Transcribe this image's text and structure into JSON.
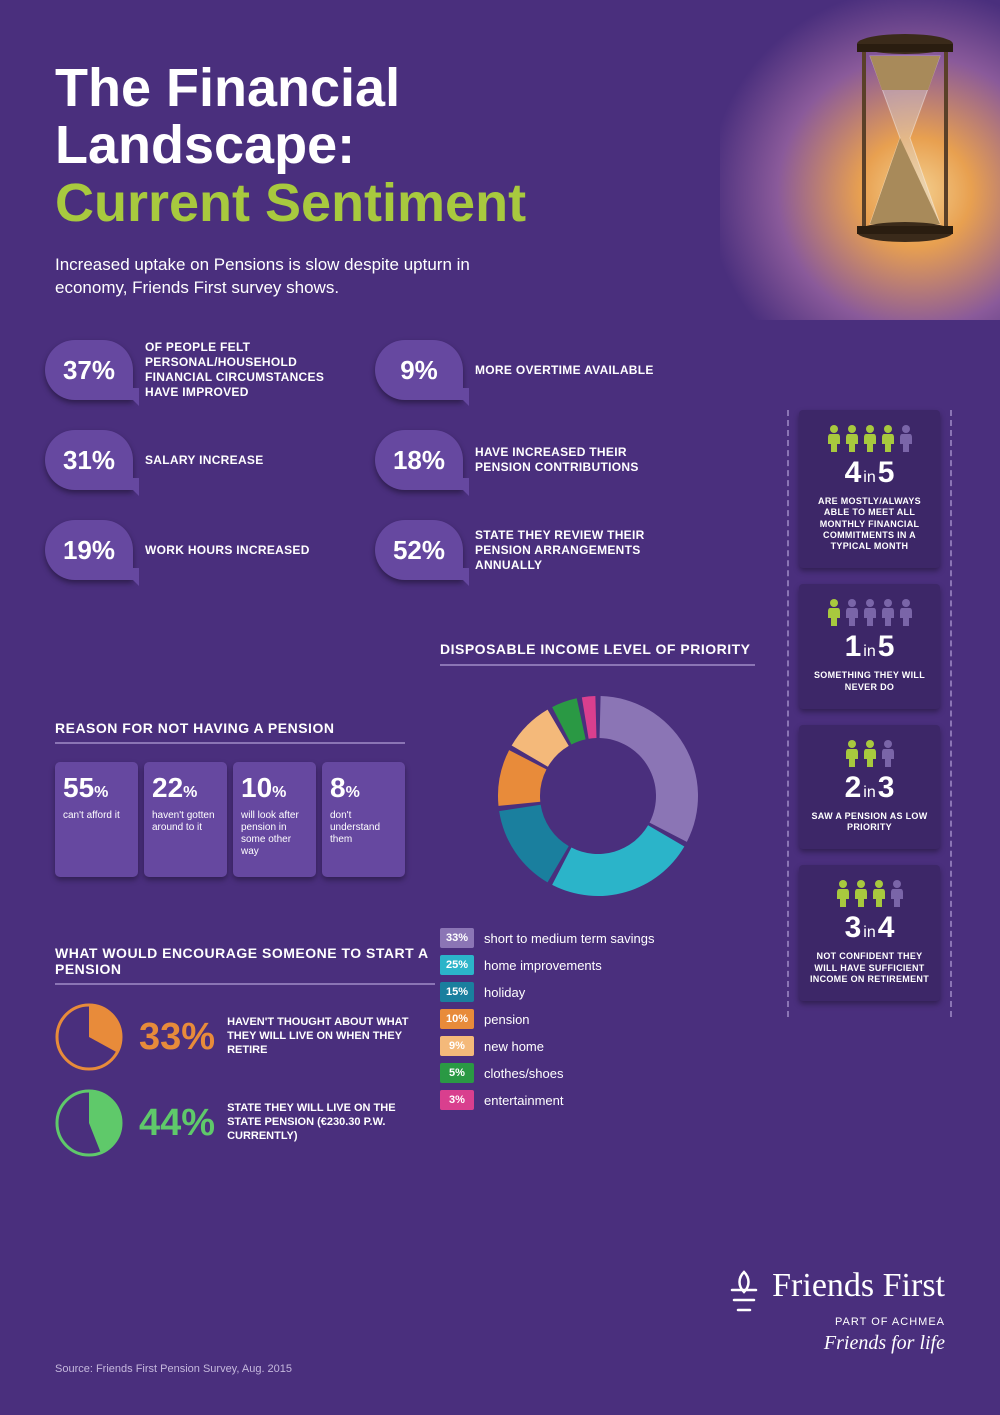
{
  "colors": {
    "background": "#4a2f7d",
    "badge": "#6648a0",
    "card_dark": "#3d2768",
    "accent_green": "#a8c93e",
    "divider": "#8b75b5",
    "white": "#ffffff",
    "pie_orange": "#e88b3a",
    "pie_green": "#5fc96a",
    "person_inactive": "#7a65a8"
  },
  "header": {
    "title_line1": "The Financial Landscape:",
    "title_line2": "Current Sentiment",
    "subtitle": "Increased uptake on Pensions is slow despite upturn in economy, Friends First survey shows."
  },
  "stats": [
    {
      "pct": "37%",
      "text": "OF PEOPLE FELT PERSONAL/HOUSEHOLD FINANCIAL CIRCUMSTANCES HAVE IMPROVED"
    },
    {
      "pct": "9%",
      "text": "MORE OVERTIME AVAILABLE"
    },
    {
      "pct": "31%",
      "text": "SALARY INCREASE"
    },
    {
      "pct": "18%",
      "text": "HAVE INCREASED THEIR PENSION CONTRIBUTIONS"
    },
    {
      "pct": "19%",
      "text": "WORK HOURS INCREASED"
    },
    {
      "pct": "52%",
      "text": "STATE THEY REVIEW THEIR PENSION ARRANGEMENTS ANNUALLY"
    }
  ],
  "reasons": {
    "title": "REASON FOR NOT HAVING A PENSION",
    "items": [
      {
        "pct": "55",
        "label": "can't afford it"
      },
      {
        "pct": "22",
        "label": "haven't gotten around to it"
      },
      {
        "pct": "10",
        "label": "will look after pension in some other way"
      },
      {
        "pct": "8",
        "label": "don't understand them"
      }
    ]
  },
  "encourage": {
    "title": "WHAT WOULD ENCOURAGE SOMEONE TO START A PENSION",
    "items": [
      {
        "pct": "33%",
        "value": 33,
        "color": "#e88b3a",
        "text": "HAVEN'T THOUGHT ABOUT WHAT THEY WILL LIVE ON WHEN THEY RETIRE"
      },
      {
        "pct": "44%",
        "value": 44,
        "color": "#5fc96a",
        "text": "STATE THEY WILL LIVE ON THE STATE PENSION (€230.30 P.W. CURRENTLY)"
      }
    ]
  },
  "donut": {
    "title": "DISPOSABLE INCOME LEVEL OF PRIORITY",
    "ring_width": 42,
    "radius": 100,
    "gap_deg": 3,
    "segments": [
      {
        "pct": 33,
        "label": "short to medium term savings",
        "color": "#8b75b5"
      },
      {
        "pct": 25,
        "label": "home improvements",
        "color": "#2bb4c9"
      },
      {
        "pct": 15,
        "label": "holiday",
        "color": "#1a7f9e"
      },
      {
        "pct": 10,
        "label": "pension",
        "color": "#e88b3a"
      },
      {
        "pct": 9,
        "label": "new home",
        "color": "#f4b97a"
      },
      {
        "pct": 5,
        "label": "clothes/shoes",
        "color": "#2a9944"
      },
      {
        "pct": 3,
        "label": "entertainment",
        "color": "#d93f8e"
      }
    ]
  },
  "sidebar": [
    {
      "big": "4",
      "small": "5",
      "total": 5,
      "active": 4,
      "active_color": "#a8c93e",
      "text": "ARE MOSTLY/ALWAYS ABLE TO MEET ALL MONTHLY FINANCIAL COMMITMENTS IN A TYPICAL MONTH"
    },
    {
      "big": "1",
      "small": "5",
      "total": 5,
      "active": 1,
      "active_color": "#a8c93e",
      "text": "SOMETHING THEY WILL NEVER DO"
    },
    {
      "big": "2",
      "small": "3",
      "total": 3,
      "active": 2,
      "active_color": "#a8c93e",
      "text": "SAW A PENSION AS LOW PRIORITY"
    },
    {
      "big": "3",
      "small": "4",
      "total": 4,
      "active": 3,
      "active_color": "#a8c93e",
      "text": "NOT CONFIDENT THEY WILL HAVE SUFFICIENT INCOME ON RETIREMENT"
    }
  ],
  "footer": {
    "brand": "Friends First",
    "sub": "PART OF ACHMEA",
    "tagline": "Friends for life",
    "source": "Source: Friends First Pension Survey, Aug. 2015"
  }
}
